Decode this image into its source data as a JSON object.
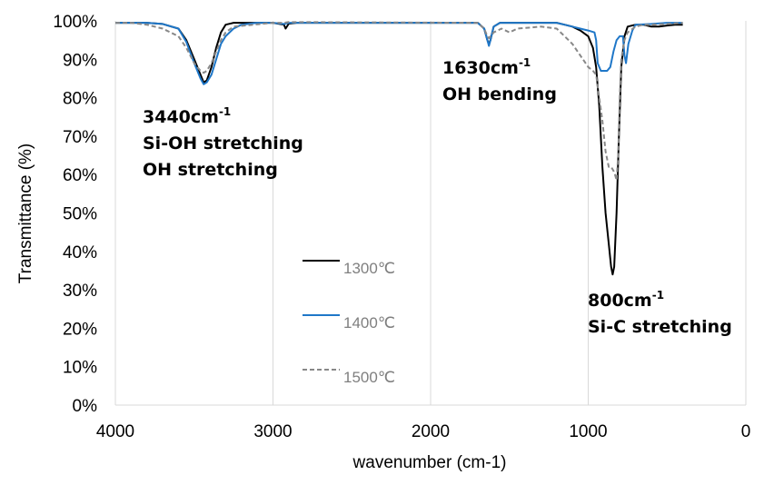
{
  "chart_data": {
    "type": "line",
    "xlabel": "wavenumber (cm-1)",
    "ylabel": "Transmittance (%)",
    "xlim": [
      4000,
      0
    ],
    "ylim": [
      0,
      100
    ],
    "x_ticks": [
      "4000",
      "3000",
      "2000",
      "1000",
      "0"
    ],
    "y_ticks": [
      "0%",
      "10%",
      "20%",
      "30%",
      "40%",
      "50%",
      "60%",
      "70%",
      "80%",
      "90%",
      "100%"
    ],
    "grid": "vertical",
    "legend_position": "center-left",
    "annotations": [
      {
        "lines": [
          {
            "text": "3440cm",
            "sup": "-1"
          },
          {
            "text": "Si-OH stretching"
          },
          {
            "text": "OH stretching"
          }
        ]
      },
      {
        "lines": [
          {
            "text": "1630cm",
            "sup": "-1"
          },
          {
            "text": "OH bending"
          }
        ]
      },
      {
        "lines": [
          {
            "text": "800cm",
            "sup": "-1"
          },
          {
            "text": "Si-C stretching"
          }
        ]
      }
    ],
    "series": [
      {
        "name": "1300℃",
        "color": "#000000",
        "dash": "solid",
        "points": [
          [
            4000,
            99.5
          ],
          [
            3900,
            99.5
          ],
          [
            3800,
            99.5
          ],
          [
            3700,
            99.2
          ],
          [
            3600,
            98
          ],
          [
            3550,
            95
          ],
          [
            3500,
            90
          ],
          [
            3460,
            86
          ],
          [
            3440,
            84
          ],
          [
            3420,
            84.5
          ],
          [
            3390,
            88
          ],
          [
            3360,
            93
          ],
          [
            3330,
            97
          ],
          [
            3300,
            99
          ],
          [
            3250,
            99.5
          ],
          [
            3000,
            99.5
          ],
          [
            2930,
            99
          ],
          [
            2920,
            98
          ],
          [
            2900,
            99.3
          ],
          [
            2850,
            99.5
          ],
          [
            1700,
            99.5
          ],
          [
            1660,
            98
          ],
          [
            1640,
            95
          ],
          [
            1630,
            94
          ],
          [
            1620,
            95
          ],
          [
            1600,
            98.5
          ],
          [
            1560,
            99.5
          ],
          [
            1200,
            99.5
          ],
          [
            1150,
            99
          ],
          [
            1100,
            98.5
          ],
          [
            1050,
            97.5
          ],
          [
            1000,
            96
          ],
          [
            970,
            93
          ],
          [
            950,
            88
          ],
          [
            930,
            78
          ],
          [
            910,
            62
          ],
          [
            890,
            50
          ],
          [
            870,
            42
          ],
          [
            855,
            36
          ],
          [
            845,
            34
          ],
          [
            835,
            36
          ],
          [
            820,
            50
          ],
          [
            805,
            70
          ],
          [
            790,
            88
          ],
          [
            770,
            96
          ],
          [
            750,
            98.5
          ],
          [
            700,
            99
          ],
          [
            650,
            99
          ],
          [
            600,
            98.5
          ],
          [
            550,
            98.5
          ],
          [
            500,
            98.8
          ],
          [
            450,
            99
          ],
          [
            400,
            99
          ]
        ]
      },
      {
        "name": "1400℃",
        "color": "#1f77c8",
        "dash": "solid",
        "points": [
          [
            4000,
            99.5
          ],
          [
            3900,
            99.5
          ],
          [
            3800,
            99.5
          ],
          [
            3700,
            99.2
          ],
          [
            3600,
            98
          ],
          [
            3550,
            94.5
          ],
          [
            3500,
            89
          ],
          [
            3460,
            85
          ],
          [
            3440,
            83.5
          ],
          [
            3420,
            84
          ],
          [
            3390,
            86
          ],
          [
            3360,
            90
          ],
          [
            3330,
            94
          ],
          [
            3300,
            96
          ],
          [
            3250,
            98
          ],
          [
            3200,
            99
          ],
          [
            3100,
            99.5
          ],
          [
            3000,
            99.5
          ],
          [
            2930,
            99.2
          ],
          [
            2900,
            99.5
          ],
          [
            1700,
            99.5
          ],
          [
            1660,
            98
          ],
          [
            1640,
            95
          ],
          [
            1630,
            93.5
          ],
          [
            1620,
            95
          ],
          [
            1600,
            98.5
          ],
          [
            1560,
            99.5
          ],
          [
            1200,
            99.5
          ],
          [
            1150,
            99
          ],
          [
            1100,
            98.5
          ],
          [
            1050,
            98
          ],
          [
            1000,
            97.5
          ],
          [
            960,
            97
          ],
          [
            950,
            95
          ],
          [
            940,
            89
          ],
          [
            920,
            87
          ],
          [
            900,
            87
          ],
          [
            880,
            87
          ],
          [
            860,
            88
          ],
          [
            840,
            92
          ],
          [
            820,
            95
          ],
          [
            800,
            96
          ],
          [
            780,
            96
          ],
          [
            770,
            91
          ],
          [
            760,
            89
          ],
          [
            745,
            94
          ],
          [
            720,
            97.5
          ],
          [
            700,
            99
          ],
          [
            600,
            99.2
          ],
          [
            500,
            99.5
          ],
          [
            400,
            99.5
          ]
        ]
      },
      {
        "name": "1500℃",
        "color": "#888888",
        "dash": "dashed",
        "points": [
          [
            4000,
            99.5
          ],
          [
            3900,
            99.5
          ],
          [
            3800,
            99
          ],
          [
            3700,
            98
          ],
          [
            3600,
            96
          ],
          [
            3550,
            93
          ],
          [
            3500,
            89
          ],
          [
            3460,
            87
          ],
          [
            3440,
            86.5
          ],
          [
            3420,
            87
          ],
          [
            3390,
            89
          ],
          [
            3360,
            92
          ],
          [
            3330,
            95
          ],
          [
            3300,
            97
          ],
          [
            3250,
            98.5
          ],
          [
            3000,
            99.5
          ],
          [
            2930,
            99.5
          ],
          [
            2900,
            99.7
          ],
          [
            1700,
            99.5
          ],
          [
            1660,
            98
          ],
          [
            1640,
            96
          ],
          [
            1630,
            95.5
          ],
          [
            1620,
            96
          ],
          [
            1600,
            97
          ],
          [
            1550,
            98
          ],
          [
            1500,
            97
          ],
          [
            1450,
            98
          ],
          [
            1300,
            98.5
          ],
          [
            1200,
            98
          ],
          [
            1150,
            96
          ],
          [
            1100,
            94
          ],
          [
            1050,
            91
          ],
          [
            1000,
            88
          ],
          [
            970,
            87
          ],
          [
            950,
            86
          ],
          [
            930,
            80
          ],
          [
            910,
            74
          ],
          [
            890,
            66
          ],
          [
            870,
            62
          ],
          [
            855,
            62
          ],
          [
            840,
            61
          ],
          [
            830,
            60
          ],
          [
            820,
            58.5
          ],
          [
            810,
            65
          ],
          [
            800,
            80
          ],
          [
            790,
            90
          ],
          [
            770,
            95
          ],
          [
            750,
            97
          ],
          [
            700,
            98.5
          ],
          [
            650,
            99
          ],
          [
            600,
            99
          ],
          [
            500,
            99.2
          ],
          [
            400,
            99.5
          ]
        ]
      }
    ]
  }
}
